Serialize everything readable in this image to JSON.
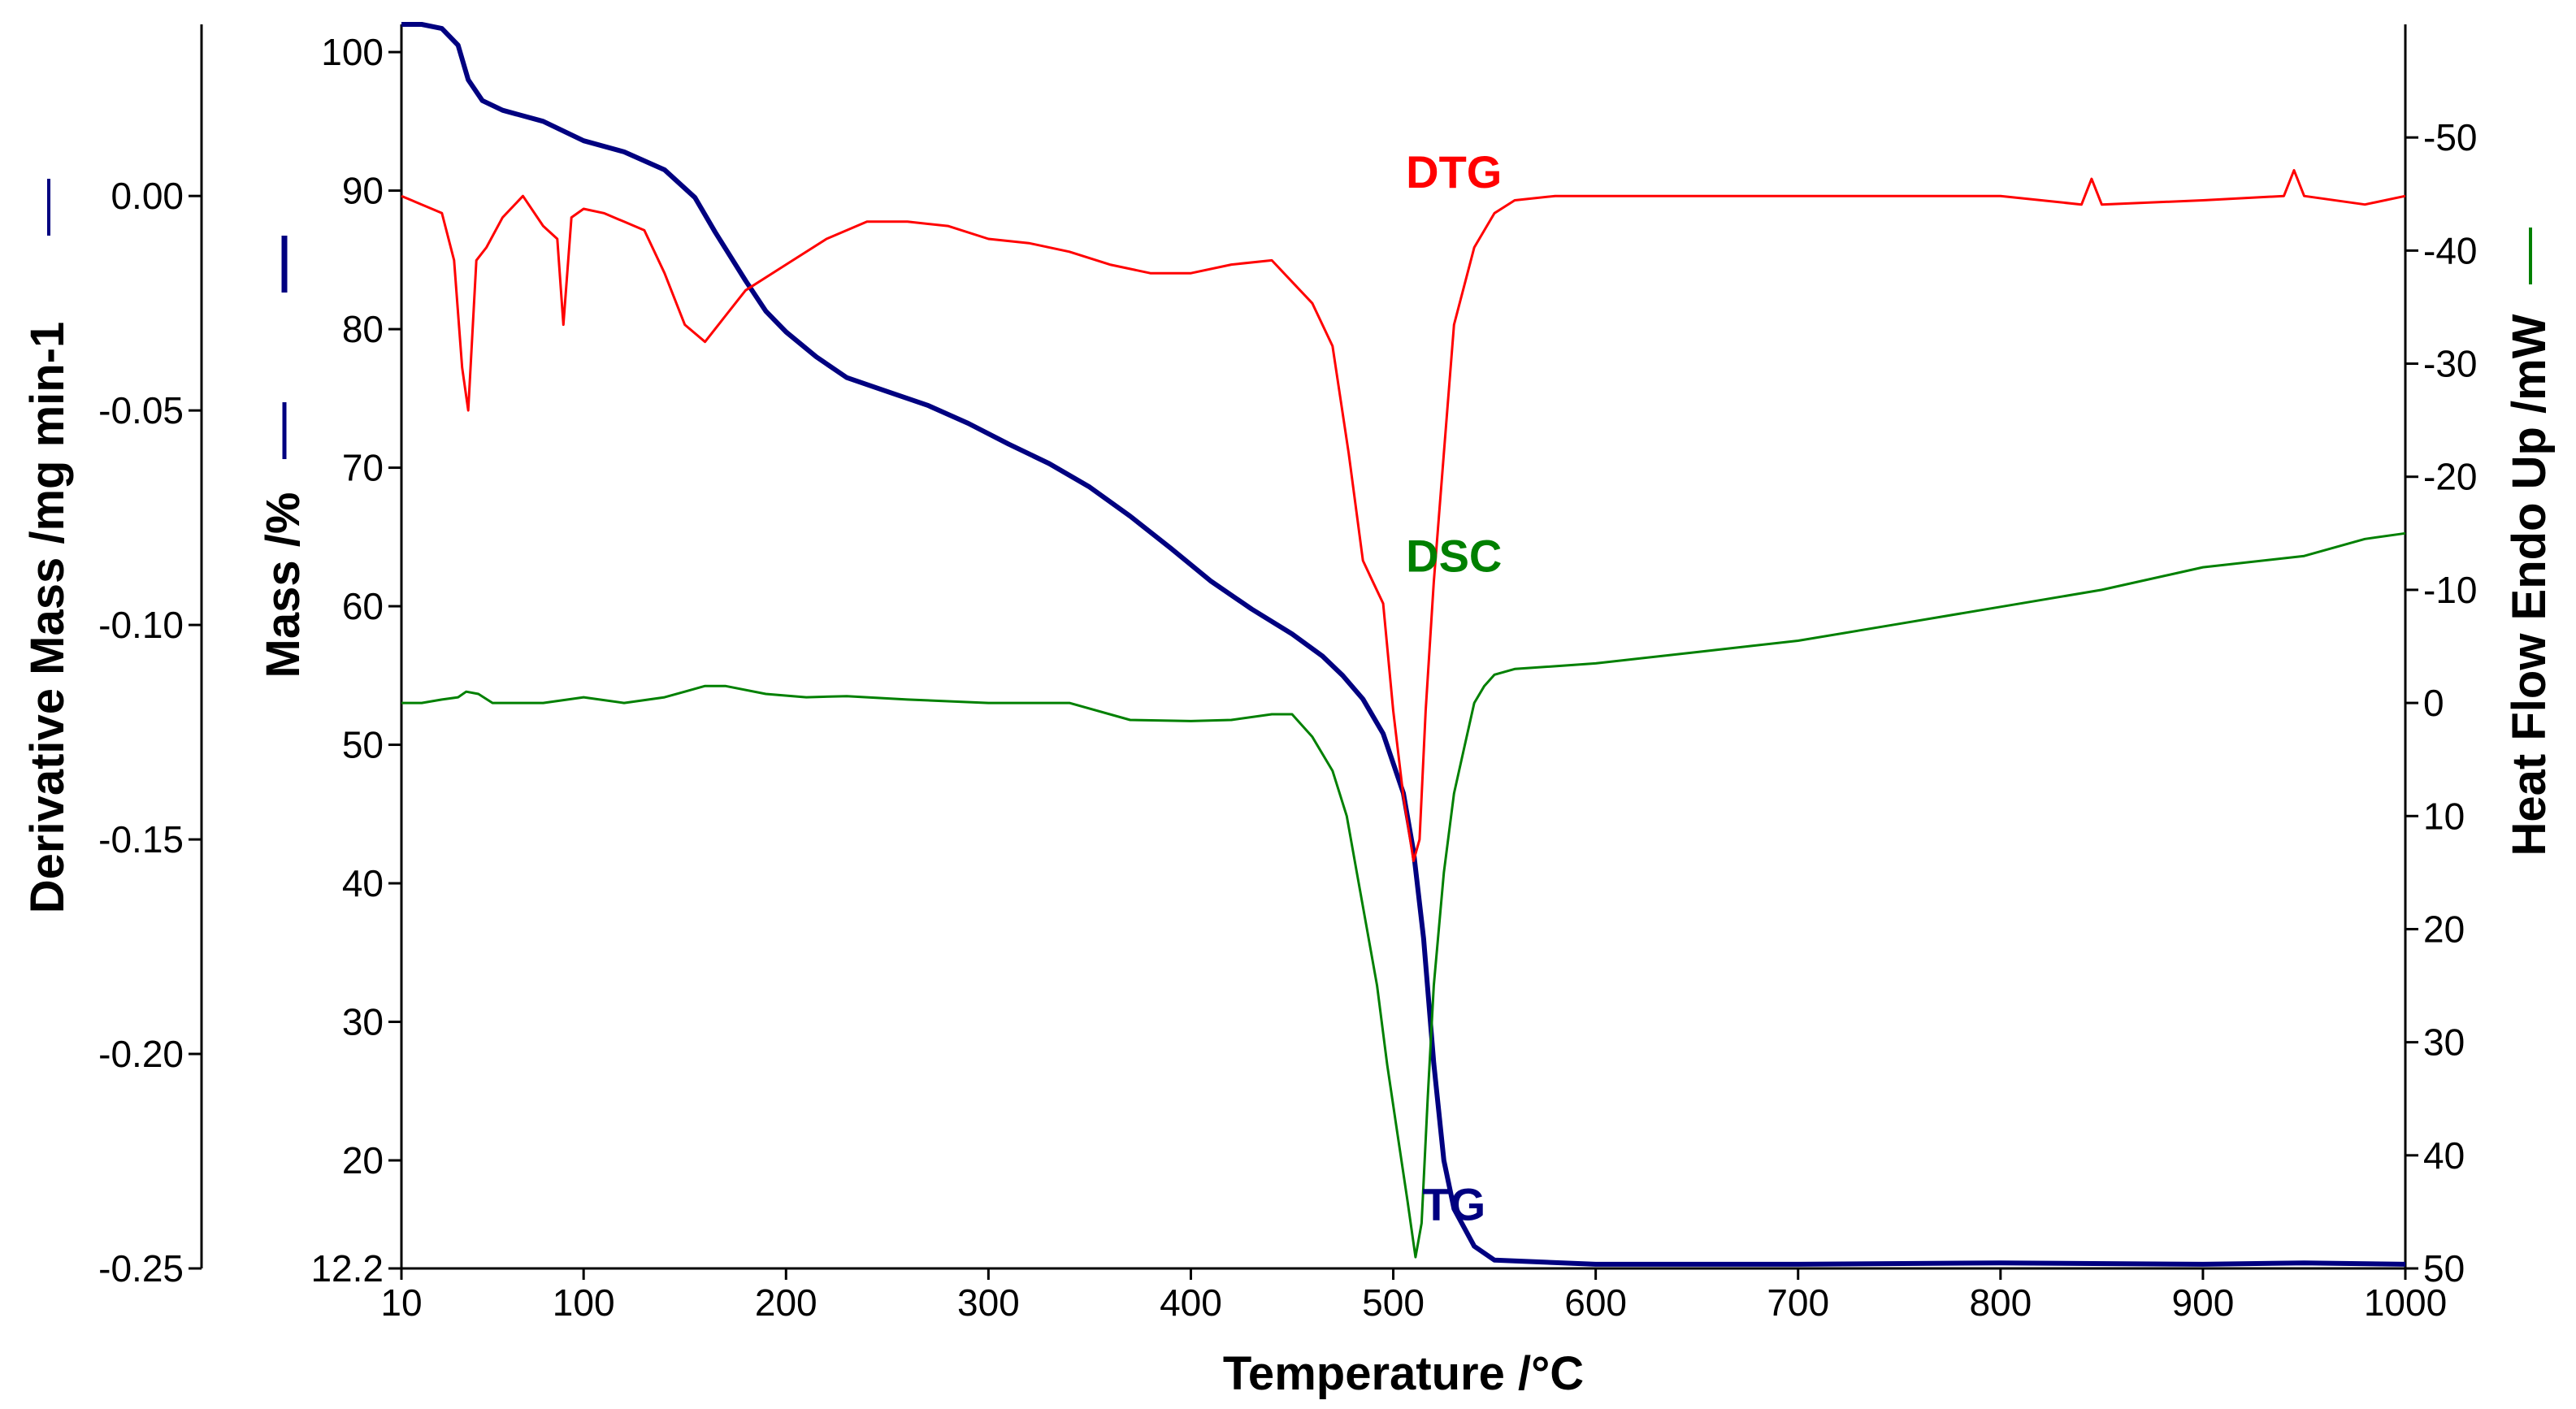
{
  "chart_data": {
    "type": "line",
    "title": "",
    "xlabel": "Temperature /°C",
    "xlim": [
      10,
      1000
    ],
    "x_ticks": [
      10,
      100,
      200,
      300,
      400,
      500,
      600,
      700,
      800,
      900,
      1000
    ],
    "colors": {
      "TG": "#000080",
      "DTG": "#ff0000",
      "DSC": "#008000",
      "axis": "#000000"
    },
    "axes": {
      "mass": {
        "label": "Mass /%",
        "ylim": [
          12.2,
          102
        ],
        "ticks": [
          100,
          90,
          80,
          70,
          60,
          50,
          40,
          30,
          20,
          12.2
        ],
        "tick_labels": [
          "100",
          "90",
          "80",
          "70",
          "60",
          "50",
          "40",
          "30",
          "20",
          "12.2"
        ]
      },
      "derivative": {
        "label": "Derivative Mass /mg min-1",
        "ylim": [
          -0.25,
          0.04
        ],
        "ticks": [
          0.0,
          -0.05,
          -0.1,
          -0.15,
          -0.2,
          -0.25
        ],
        "tick_labels": [
          "0.00",
          "-0.05",
          "-0.10",
          "-0.15",
          "-0.20",
          "-0.25"
        ]
      },
      "heatflow": {
        "label": "Heat Flow Endo Up /mW",
        "ylim": [
          50,
          -60
        ],
        "ticks": [
          -50,
          -40,
          -30,
          -20,
          -10,
          0,
          10,
          20,
          30,
          40,
          50
        ],
        "tick_labels": [
          "-50",
          "-40",
          "-30",
          "-20",
          "-10",
          "0",
          "10",
          "20",
          "30",
          "40",
          "50"
        ]
      }
    },
    "series": [
      {
        "name": "TG",
        "axis": "mass",
        "points": [
          [
            10,
            102
          ],
          [
            20,
            102
          ],
          [
            30,
            101.7
          ],
          [
            38,
            100.5
          ],
          [
            43,
            98
          ],
          [
            50,
            96.5
          ],
          [
            60,
            95.8
          ],
          [
            80,
            95
          ],
          [
            100,
            93.6
          ],
          [
            120,
            92.8
          ],
          [
            140,
            91.5
          ],
          [
            155,
            89.5
          ],
          [
            165,
            87
          ],
          [
            180,
            83.5
          ],
          [
            190,
            81.3
          ],
          [
            200,
            79.8
          ],
          [
            215,
            78
          ],
          [
            230,
            76.5
          ],
          [
            250,
            75.5
          ],
          [
            270,
            74.5
          ],
          [
            290,
            73.2
          ],
          [
            310,
            71.7
          ],
          [
            330,
            70.3
          ],
          [
            350,
            68.6
          ],
          [
            370,
            66.5
          ],
          [
            390,
            64.2
          ],
          [
            410,
            61.8
          ],
          [
            430,
            59.8
          ],
          [
            450,
            58
          ],
          [
            465,
            56.4
          ],
          [
            475,
            55
          ],
          [
            485,
            53.3
          ],
          [
            495,
            50.8
          ],
          [
            505,
            46.5
          ],
          [
            510,
            42.3
          ],
          [
            515,
            36
          ],
          [
            520,
            27
          ],
          [
            525,
            20
          ],
          [
            530,
            16.5
          ],
          [
            540,
            13.8
          ],
          [
            550,
            12.8
          ],
          [
            600,
            12.5
          ],
          [
            700,
            12.5
          ],
          [
            800,
            12.6
          ],
          [
            900,
            12.5
          ],
          [
            950,
            12.6
          ],
          [
            1000,
            12.5
          ]
        ]
      },
      {
        "name": "DTG",
        "axis": "derivative",
        "points": [
          [
            10,
            0.0
          ],
          [
            20,
            -0.002
          ],
          [
            30,
            -0.004
          ],
          [
            36,
            -0.015
          ],
          [
            40,
            -0.04
          ],
          [
            43,
            -0.05
          ],
          [
            47,
            -0.015
          ],
          [
            52,
            -0.012
          ],
          [
            60,
            -0.005
          ],
          [
            70,
            0.0
          ],
          [
            80,
            -0.007
          ],
          [
            87,
            -0.01
          ],
          [
            90,
            -0.03
          ],
          [
            94,
            -0.005
          ],
          [
            100,
            -0.003
          ],
          [
            110,
            -0.004
          ],
          [
            120,
            -0.006
          ],
          [
            130,
            -0.008
          ],
          [
            140,
            -0.018
          ],
          [
            150,
            -0.03
          ],
          [
            160,
            -0.034
          ],
          [
            170,
            -0.028
          ],
          [
            180,
            -0.022
          ],
          [
            200,
            -0.016
          ],
          [
            220,
            -0.01
          ],
          [
            240,
            -0.006
          ],
          [
            260,
            -0.006
          ],
          [
            280,
            -0.007
          ],
          [
            300,
            -0.01
          ],
          [
            320,
            -0.011
          ],
          [
            340,
            -0.013
          ],
          [
            360,
            -0.016
          ],
          [
            380,
            -0.018
          ],
          [
            400,
            -0.018
          ],
          [
            420,
            -0.016
          ],
          [
            440,
            -0.015
          ],
          [
            450,
            -0.02
          ],
          [
            460,
            -0.025
          ],
          [
            470,
            -0.035
          ],
          [
            478,
            -0.06
          ],
          [
            485,
            -0.085
          ],
          [
            490,
            -0.09
          ],
          [
            495,
            -0.095
          ],
          [
            500,
            -0.12
          ],
          [
            505,
            -0.14
          ],
          [
            510,
            -0.155
          ],
          [
            513,
            -0.15
          ],
          [
            516,
            -0.12
          ],
          [
            520,
            -0.09
          ],
          [
            525,
            -0.06
          ],
          [
            530,
            -0.03
          ],
          [
            540,
            -0.012
          ],
          [
            550,
            -0.004
          ],
          [
            560,
            -0.001
          ],
          [
            580,
            0.0
          ],
          [
            600,
            0.0
          ],
          [
            700,
            0.0
          ],
          [
            800,
            0.0
          ],
          [
            840,
            -0.002
          ],
          [
            845,
            0.004
          ],
          [
            850,
            -0.002
          ],
          [
            900,
            -0.001
          ],
          [
            940,
            0.0
          ],
          [
            945,
            0.006
          ],
          [
            950,
            0.0
          ],
          [
            980,
            -0.002
          ],
          [
            1000,
            0.0
          ]
        ]
      },
      {
        "name": "DSC",
        "axis": "heatflow",
        "points": [
          [
            10,
            0
          ],
          [
            20,
            0
          ],
          [
            30,
            -0.3
          ],
          [
            38,
            -0.5
          ],
          [
            42,
            -1
          ],
          [
            48,
            -0.8
          ],
          [
            55,
            0
          ],
          [
            80,
            0
          ],
          [
            100,
            -0.5
          ],
          [
            120,
            0
          ],
          [
            140,
            -0.5
          ],
          [
            150,
            -1
          ],
          [
            160,
            -1.5
          ],
          [
            170,
            -1.5
          ],
          [
            190,
            -0.8
          ],
          [
            210,
            -0.5
          ],
          [
            230,
            -0.6
          ],
          [
            260,
            -0.3
          ],
          [
            300,
            0
          ],
          [
            340,
            0
          ],
          [
            370,
            1.5
          ],
          [
            400,
            1.6
          ],
          [
            420,
            1.5
          ],
          [
            440,
            1
          ],
          [
            450,
            1
          ],
          [
            460,
            3
          ],
          [
            470,
            6
          ],
          [
            477,
            10
          ],
          [
            482,
            15
          ],
          [
            487,
            20
          ],
          [
            492,
            25
          ],
          [
            497,
            32
          ],
          [
            502,
            38
          ],
          [
            507,
            44
          ],
          [
            511,
            49
          ],
          [
            514,
            46
          ],
          [
            517,
            35
          ],
          [
            520,
            25
          ],
          [
            525,
            15
          ],
          [
            530,
            8
          ],
          [
            535,
            4
          ],
          [
            540,
            0
          ],
          [
            545,
            -1.5
          ],
          [
            550,
            -2.5
          ],
          [
            560,
            -3
          ],
          [
            600,
            -3.5
          ],
          [
            650,
            -4.5
          ],
          [
            700,
            -5.5
          ],
          [
            750,
            -7
          ],
          [
            800,
            -8.5
          ],
          [
            850,
            -10
          ],
          [
            900,
            -12
          ],
          [
            950,
            -13
          ],
          [
            980,
            -14.5
          ],
          [
            1000,
            -15
          ]
        ]
      }
    ],
    "annotations": [
      {
        "text": "DTG",
        "x": 530,
        "axis": "mass",
        "y": 90.2,
        "series": "DTG"
      },
      {
        "text": "DSC",
        "x": 530,
        "axis": "mass",
        "y": 62.5,
        "series": "DSC"
      },
      {
        "text": "TG",
        "x": 530,
        "axis": "mass",
        "y": 15.7,
        "series": "TG"
      }
    ]
  }
}
